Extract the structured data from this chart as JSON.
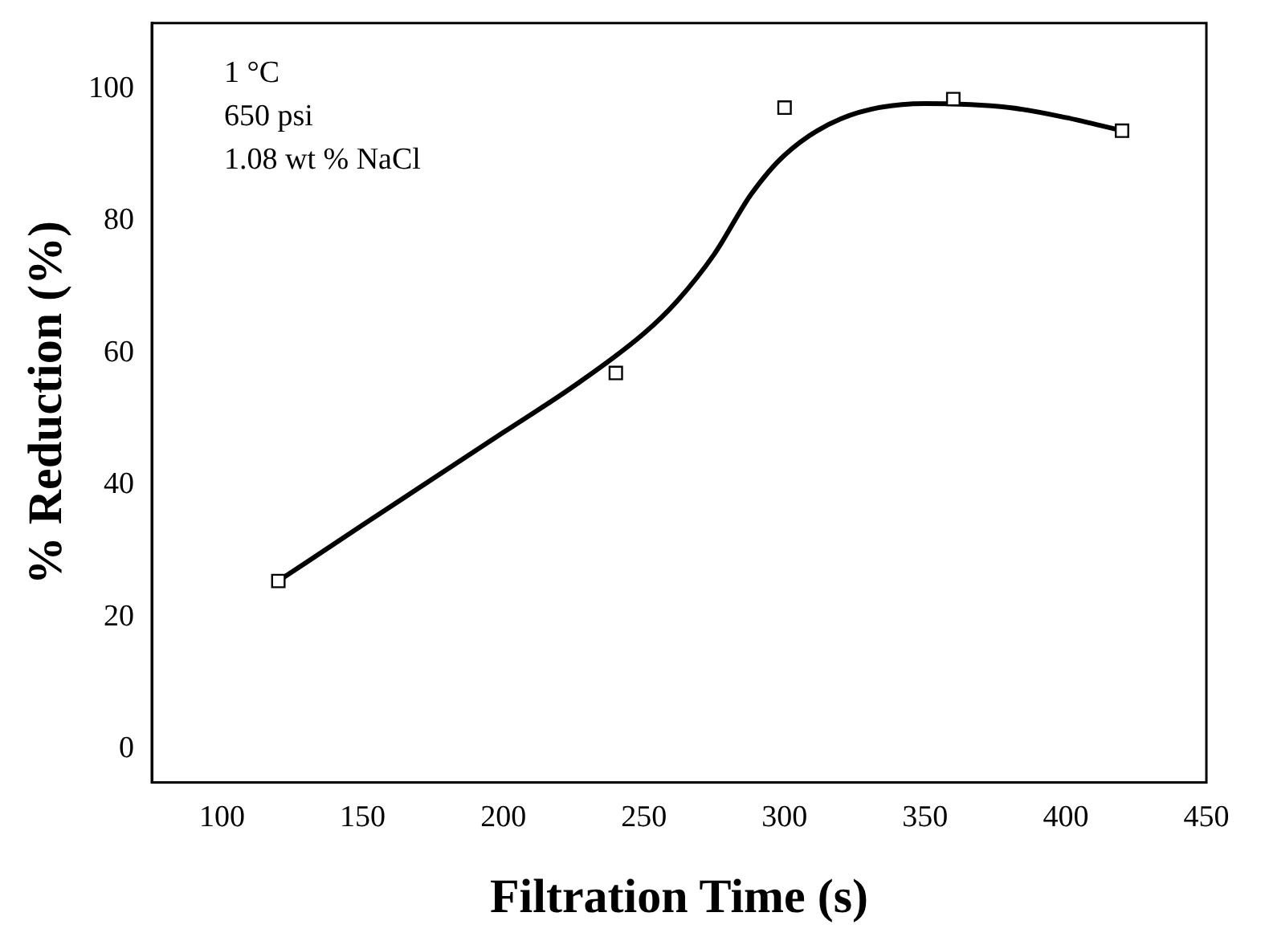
{
  "chart_data": {
    "type": "scatter",
    "xlabel": "Filtration Time (s)",
    "ylabel": "% Reduction (%)",
    "xlim": [
      75,
      450
    ],
    "xticks": [
      100,
      150,
      200,
      250,
      300,
      350,
      400,
      450
    ],
    "ylim": [
      -5,
      110
    ],
    "yticks": [
      0,
      20,
      40,
      60,
      80,
      100
    ],
    "grid": false,
    "legend": false,
    "annotations": [
      "1 °C",
      "650 psi",
      "1.08 wt % NaCl"
    ],
    "series": [
      {
        "type": "scatter",
        "marker": "square",
        "color": "#000000",
        "x": [
          120,
          240,
          300,
          360,
          420
        ],
        "values": [
          25.5,
          57,
          97.2,
          98.5,
          93.7
        ]
      },
      {
        "type": "line",
        "marker": "none",
        "line_style": "solid",
        "color": "#000000",
        "x": [
          120,
          150,
          200,
          225,
          250,
          262,
          275,
          288,
          300,
          320,
          350,
          380,
          400,
          420
        ],
        "values": [
          25.5,
          34,
          48,
          55,
          63,
          68,
          75,
          84,
          90,
          95.5,
          97.8,
          97.2,
          95.7,
          93.7
        ]
      }
    ]
  }
}
